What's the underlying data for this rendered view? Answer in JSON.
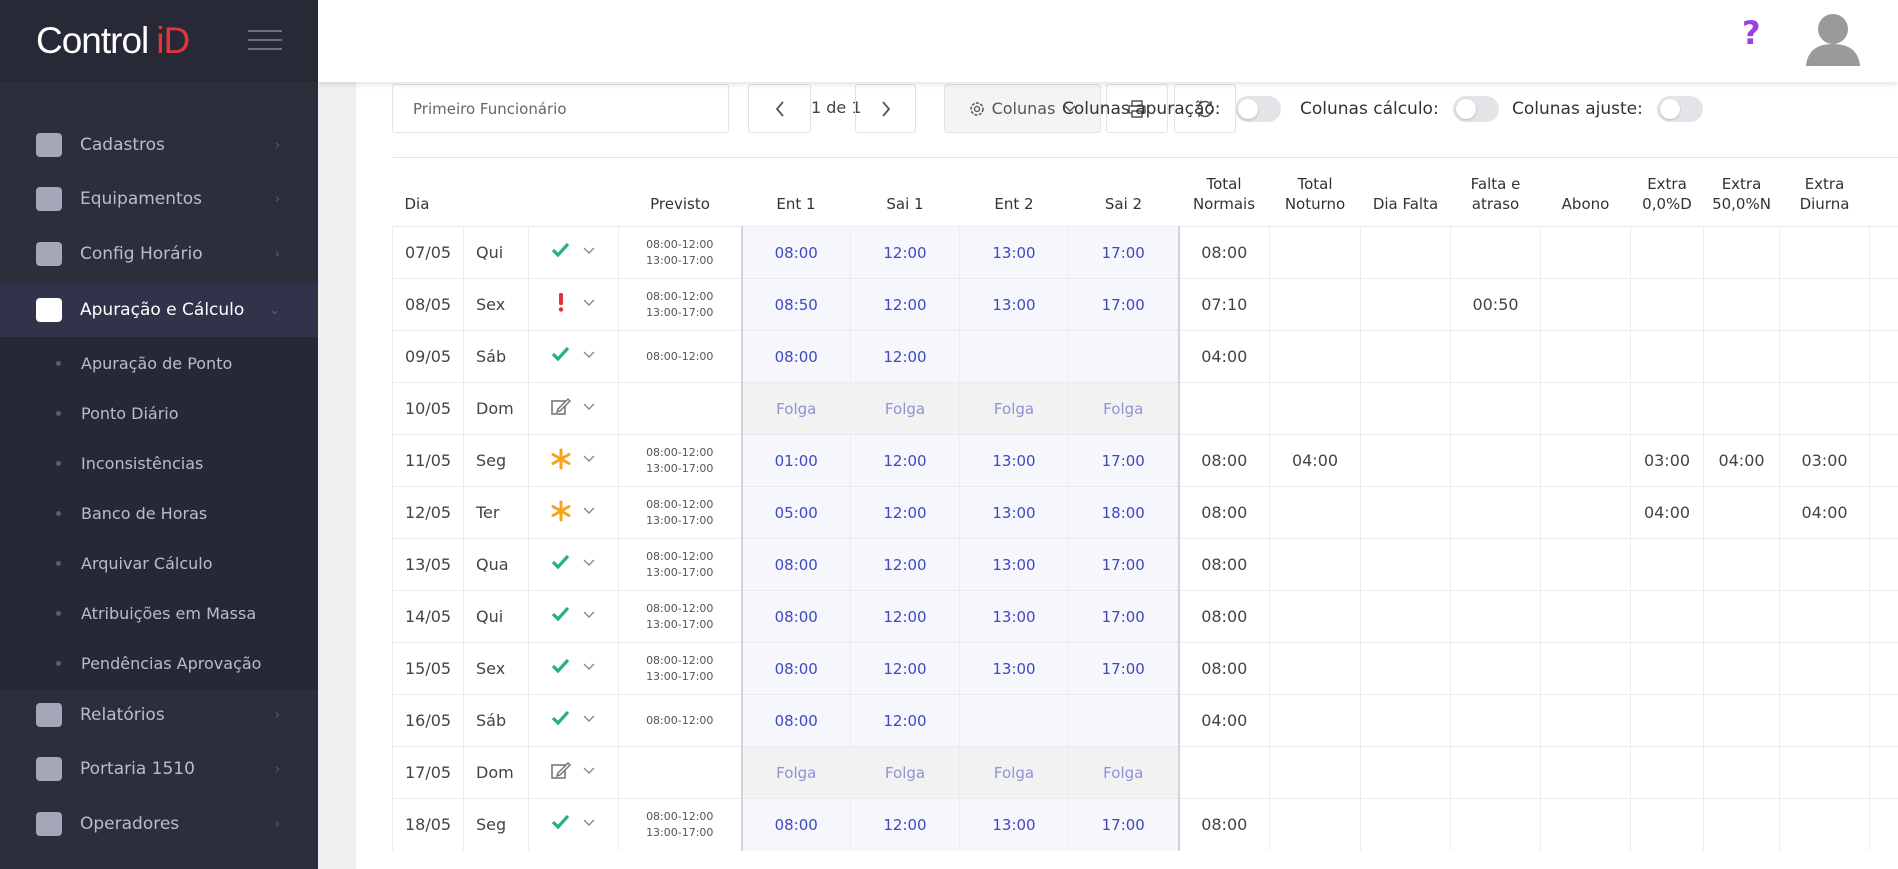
{
  "sidebar": {
    "brand_main": "Control",
    "brand_accent": "iD",
    "menu": [
      {
        "label": "Cadastros"
      },
      {
        "label": "Equipamentos"
      },
      {
        "label": "Config Horário"
      },
      {
        "label": "Apuração e Cálculo",
        "submenu": [
          "Apuração de Ponto",
          "Ponto Diário",
          "Inconsistências",
          "Banco de Horas",
          "Arquivar Cálculo",
          "Atribuições em Massa",
          "Pendências Aprovação"
        ]
      },
      {
        "label": "Relatórios"
      },
      {
        "label": "Portaria 1510"
      },
      {
        "label": "Operadores"
      }
    ]
  },
  "header": {
    "help": "?"
  },
  "toolbar": {
    "search_placeholder": "Primeiro Funcionário",
    "page": "1 de 1",
    "columns_button": "Colunas",
    "toggles": [
      "Colunas apuração:",
      "Colunas cálculo:",
      "Colunas ajuste:"
    ]
  },
  "table": {
    "headers": [
      "Dia",
      null,
      null,
      "Previsto",
      "Ent 1",
      "Sai 1",
      "Ent 2",
      "Sai 2",
      "Total Normais",
      "Total Noturno",
      "Dia Falta",
      "Falta e atraso",
      "Abono",
      "Extra 0,0%D",
      "Extra 50,0%N",
      "Extra Diurna"
    ],
    "rows": [
      {
        "day": "07/05",
        "weekday": "Qui",
        "status": "check",
        "previsto": [
          "08:00-12:00",
          "13:00-17:00"
        ],
        "punches": [
          "08:00",
          "12:00",
          "13:00",
          "17:00"
        ],
        "totals": [
          "08:00",
          null,
          null,
          null,
          null,
          null,
          null,
          null
        ]
      },
      {
        "day": "08/05",
        "weekday": "Sex",
        "status": "alert",
        "previsto": [
          "08:00-12:00",
          "13:00-17:00"
        ],
        "punches": [
          "08:50",
          "12:00",
          "13:00",
          "17:00"
        ],
        "totals": [
          "07:10",
          null,
          null,
          "00:50",
          null,
          null,
          null,
          null
        ]
      },
      {
        "day": "09/05",
        "weekday": "Sáb",
        "status": "check",
        "previsto": [
          "08:00-12:00"
        ],
        "punches": [
          "08:00",
          "12:00",
          null,
          null
        ],
        "totals": [
          "04:00",
          null,
          null,
          null,
          null,
          null,
          null,
          null
        ]
      },
      {
        "day": "10/05",
        "weekday": "Dom",
        "status": "edit",
        "previsto": [],
        "punches": [
          "Folga",
          "Folga",
          "Folga",
          "Folga"
        ],
        "totals": [
          null,
          null,
          null,
          null,
          null,
          null,
          null,
          null
        ]
      },
      {
        "day": "11/05",
        "weekday": "Seg",
        "status": "asterisk",
        "previsto": [
          "08:00-12:00",
          "13:00-17:00"
        ],
        "punches": [
          "01:00",
          "12:00",
          "13:00",
          "17:00"
        ],
        "totals": [
          "08:00",
          "04:00",
          null,
          null,
          null,
          "03:00",
          "04:00",
          "03:00"
        ]
      },
      {
        "day": "12/05",
        "weekday": "Ter",
        "status": "asterisk",
        "previsto": [
          "08:00-12:00",
          "13:00-17:00"
        ],
        "punches": [
          "05:00",
          "12:00",
          "13:00",
          "18:00"
        ],
        "totals": [
          "08:00",
          null,
          null,
          null,
          null,
          "04:00",
          null,
          "04:00"
        ]
      },
      {
        "day": "13/05",
        "weekday": "Qua",
        "status": "check",
        "previsto": [
          "08:00-12:00",
          "13:00-17:00"
        ],
        "punches": [
          "08:00",
          "12:00",
          "13:00",
          "17:00"
        ],
        "totals": [
          "08:00",
          null,
          null,
          null,
          null,
          null,
          null,
          null
        ]
      },
      {
        "day": "14/05",
        "weekday": "Qui",
        "status": "check",
        "previsto": [
          "08:00-12:00",
          "13:00-17:00"
        ],
        "punches": [
          "08:00",
          "12:00",
          "13:00",
          "17:00"
        ],
        "totals": [
          "08:00",
          null,
          null,
          null,
          null,
          null,
          null,
          null
        ]
      },
      {
        "day": "15/05",
        "weekday": "Sex",
        "status": "check",
        "previsto": [
          "08:00-12:00",
          "13:00-17:00"
        ],
        "punches": [
          "08:00",
          "12:00",
          "13:00",
          "17:00"
        ],
        "totals": [
          "08:00",
          null,
          null,
          null,
          null,
          null,
          null,
          null
        ]
      },
      {
        "day": "16/05",
        "weekday": "Sáb",
        "status": "check",
        "previsto": [
          "08:00-12:00"
        ],
        "punches": [
          "08:00",
          "12:00",
          null,
          null
        ],
        "totals": [
          "04:00",
          null,
          null,
          null,
          null,
          null,
          null,
          null
        ]
      },
      {
        "day": "17/05",
        "weekday": "Dom",
        "status": "edit",
        "previsto": [],
        "punches": [
          "Folga",
          "Folga",
          "Folga",
          "Folga"
        ],
        "totals": [
          null,
          null,
          null,
          null,
          null,
          null,
          null,
          null
        ]
      },
      {
        "day": "18/05",
        "weekday": "Seg",
        "status": "check",
        "previsto": [
          "08:00-12:00",
          "13:00-17:00"
        ],
        "punches": [
          "08:00",
          "12:00",
          "13:00",
          "17:00"
        ],
        "totals": [
          "08:00",
          null,
          null,
          null,
          null,
          null,
          null,
          null
        ]
      }
    ]
  }
}
